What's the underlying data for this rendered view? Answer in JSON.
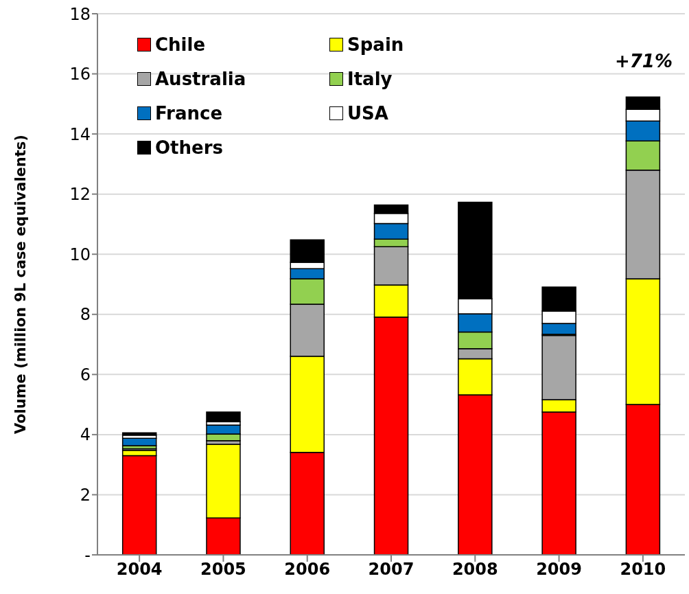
{
  "chart_data": {
    "type": "bar",
    "stacked": true,
    "ylabel": "Volume (million 9L case equivalents)",
    "categories": [
      "2004",
      "2005",
      "2006",
      "2007",
      "2008",
      "2009",
      "2010"
    ],
    "series": [
      {
        "name": "Chile",
        "color": "#ff0000",
        "values": [
          3.3,
          1.23,
          3.41,
          7.91,
          5.32,
          4.75,
          5.0
        ]
      },
      {
        "name": "Spain",
        "color": "#ffff00",
        "values": [
          0.18,
          2.45,
          3.2,
          1.07,
          1.2,
          0.41,
          4.18
        ]
      },
      {
        "name": "Australia",
        "color": "#a6a6a6",
        "values": [
          0.05,
          0.12,
          1.73,
          1.27,
          0.34,
          2.14,
          3.62
        ]
      },
      {
        "name": "Italy",
        "color": "#92d050",
        "values": [
          0.1,
          0.22,
          0.84,
          0.25,
          0.55,
          0.04,
          0.97
        ]
      },
      {
        "name": "France",
        "color": "#0070c0",
        "values": [
          0.25,
          0.3,
          0.34,
          0.52,
          0.61,
          0.36,
          0.66
        ]
      },
      {
        "name": "USA",
        "color": "#ffffff",
        "values": [
          0.1,
          0.11,
          0.21,
          0.34,
          0.5,
          0.41,
          0.39
        ]
      },
      {
        "name": "Others",
        "color": "#000000",
        "values": [
          0.08,
          0.32,
          0.75,
          0.28,
          3.21,
          0.8,
          0.41
        ]
      }
    ],
    "ylim": [
      0,
      18
    ],
    "yticks": [
      {
        "value": 0,
        "label": "-"
      },
      2,
      4,
      6,
      8,
      10,
      12,
      14,
      16,
      18
    ],
    "grid": "y",
    "legend": "top left",
    "annotations": [
      "+71%"
    ]
  }
}
